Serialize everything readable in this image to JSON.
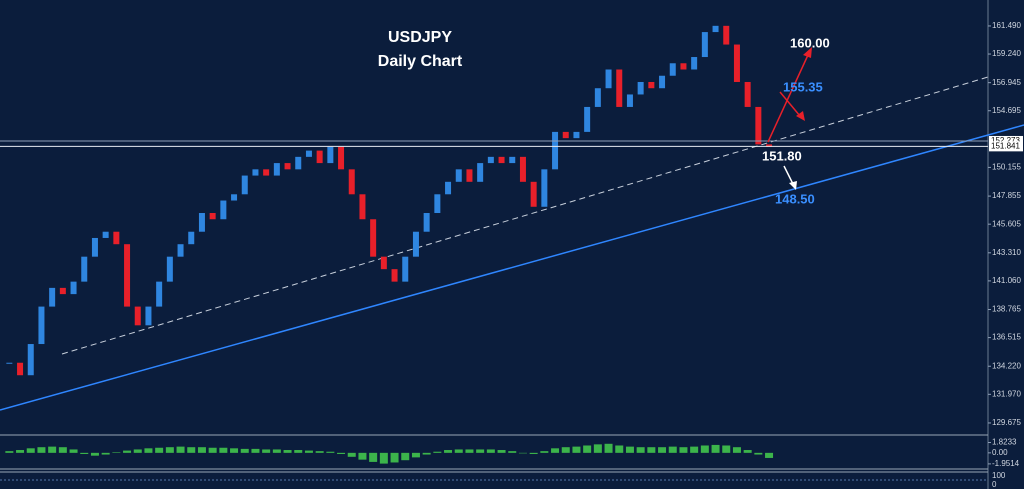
{
  "chart_data": [
    {
      "type": "candlestick",
      "title": "USDJPY",
      "subtitle": "Daily Chart",
      "annotations": [
        "160.00",
        "155.35",
        "151.80",
        "148.50"
      ],
      "values": [
        134.5,
        133.5,
        136,
        139,
        140.5,
        140,
        141,
        143,
        144.5,
        145,
        144,
        139,
        137.5,
        139,
        141,
        143,
        144,
        145,
        146.5,
        146,
        147.5,
        148,
        149.5,
        150,
        149.5,
        150.5,
        150,
        151,
        151.5,
        150.5,
        151.8,
        150,
        148,
        146,
        143,
        142,
        141,
        143,
        145,
        146.5,
        148,
        149,
        150,
        149,
        150.5,
        151,
        150.5,
        151,
        149,
        147,
        150,
        153,
        152.5,
        153,
        155,
        156.5,
        158,
        155,
        156,
        157,
        156.5,
        157.5,
        158.5,
        158,
        159,
        161,
        161.5,
        160,
        157,
        155,
        152,
        151.8
      ],
      "up_color": "#2f86e0",
      "down_color": "#e8202a",
      "ylim": [
        128.87,
        163.57
      ],
      "yticks": [
        {
          "value": 161.49,
          "label": "161.490"
        },
        {
          "value": 159.24,
          "label": "159.240"
        },
        156.945,
        154.695,
        150.155,
        147.855,
        145.605,
        {
          "value": 143.31,
          "label": "143.310"
        },
        {
          "value": 141.06,
          "label": "141.060"
        },
        138.765,
        136.515,
        {
          "value": 134.22,
          "label": "134.220"
        },
        {
          "value": 131.97,
          "label": "131.970"
        },
        129.675
      ],
      "levels": [
        152.273,
        151.841
      ]
    },
    {
      "type": "bar",
      "values": [
        0.3,
        0.5,
        0.8,
        1.0,
        1.1,
        1.0,
        0.6,
        -0.2,
        -0.5,
        -0.3,
        0.1,
        0.4,
        0.6,
        0.8,
        0.9,
        1.0,
        1.1,
        1.0,
        1.0,
        0.9,
        0.9,
        0.8,
        0.7,
        0.7,
        0.6,
        0.6,
        0.5,
        0.5,
        0.4,
        0.3,
        0.2,
        -0.2,
        -0.7,
        -1.2,
        -1.6,
        -1.9,
        -1.7,
        -1.3,
        -0.8,
        -0.3,
        0.2,
        0.5,
        0.6,
        0.6,
        0.6,
        0.6,
        0.5,
        0.3,
        0.0,
        -0.2,
        0.3,
        0.8,
        1.0,
        1.1,
        1.3,
        1.5,
        1.6,
        1.3,
        1.1,
        1.0,
        1.0,
        1.0,
        1.1,
        1.0,
        1.1,
        1.3,
        1.4,
        1.3,
        1.0,
        0.5,
        -0.3,
        -0.9
      ],
      "color": "#3cb44b",
      "ylim": [
        -2.5,
        2.8
      ],
      "yticks": [
        1.8233,
        {
          "value": 0,
          "label": "0.00"
        },
        -1.9514
      ],
      "lower_pane_labels": [
        "100",
        "0"
      ]
    }
  ]
}
